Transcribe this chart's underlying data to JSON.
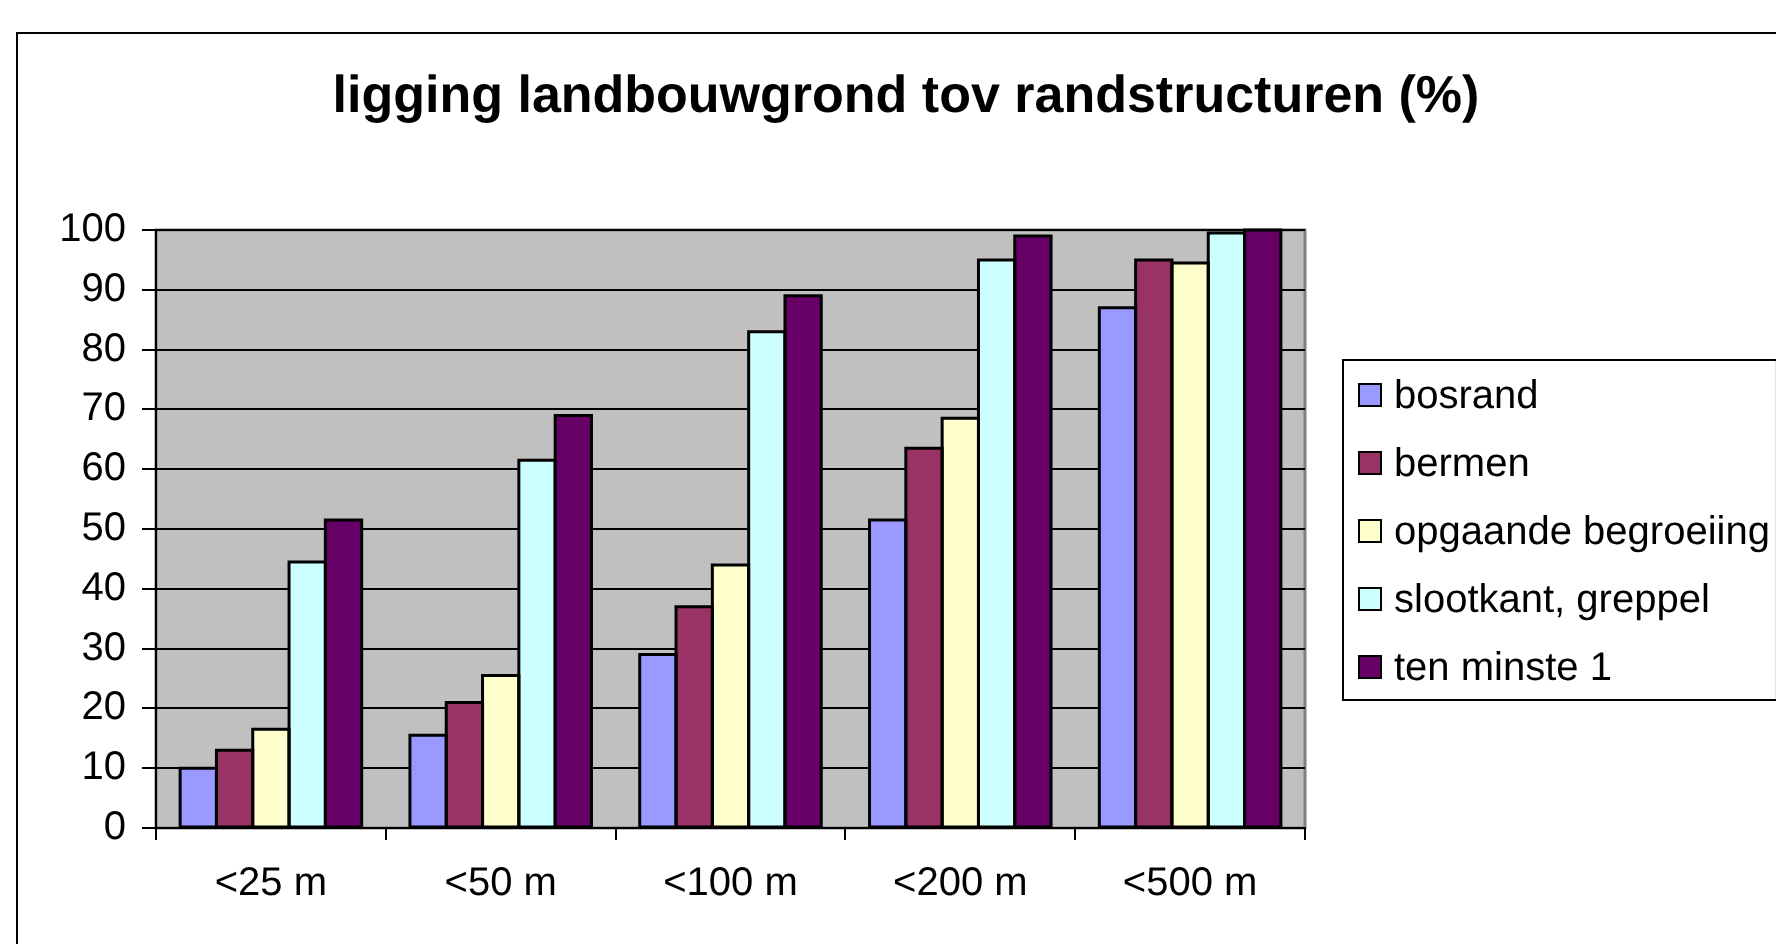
{
  "chart_data": {
    "type": "bar",
    "title": "ligging landbouwgrond tov randstructuren (%)",
    "categories": [
      "<25 m",
      "<50 m",
      "<100 m",
      "<200 m",
      "<500 m"
    ],
    "series": [
      {
        "name": "bosrand",
        "color": "#9999ff",
        "values": [
          10,
          15.5,
          29,
          51.5,
          87
        ]
      },
      {
        "name": "bermen",
        "color": "#993366",
        "values": [
          13,
          21,
          37,
          63.5,
          95
        ]
      },
      {
        "name": "opgaande begroeiing",
        "color": "#ffffcc",
        "values": [
          16.5,
          25.5,
          44,
          68.5,
          94.5
        ]
      },
      {
        "name": "slootkant, greppel",
        "color": "#ccffff",
        "values": [
          44.5,
          61.5,
          83,
          95,
          99.5
        ]
      },
      {
        "name": "ten minste 1",
        "color": "#660066",
        "values": [
          51.5,
          69,
          89,
          99,
          100
        ]
      }
    ],
    "ylim": [
      0,
      100
    ],
    "yticks": [
      0,
      10,
      20,
      30,
      40,
      50,
      60,
      70,
      80,
      90,
      100
    ],
    "grid": "y",
    "legend": "right"
  }
}
